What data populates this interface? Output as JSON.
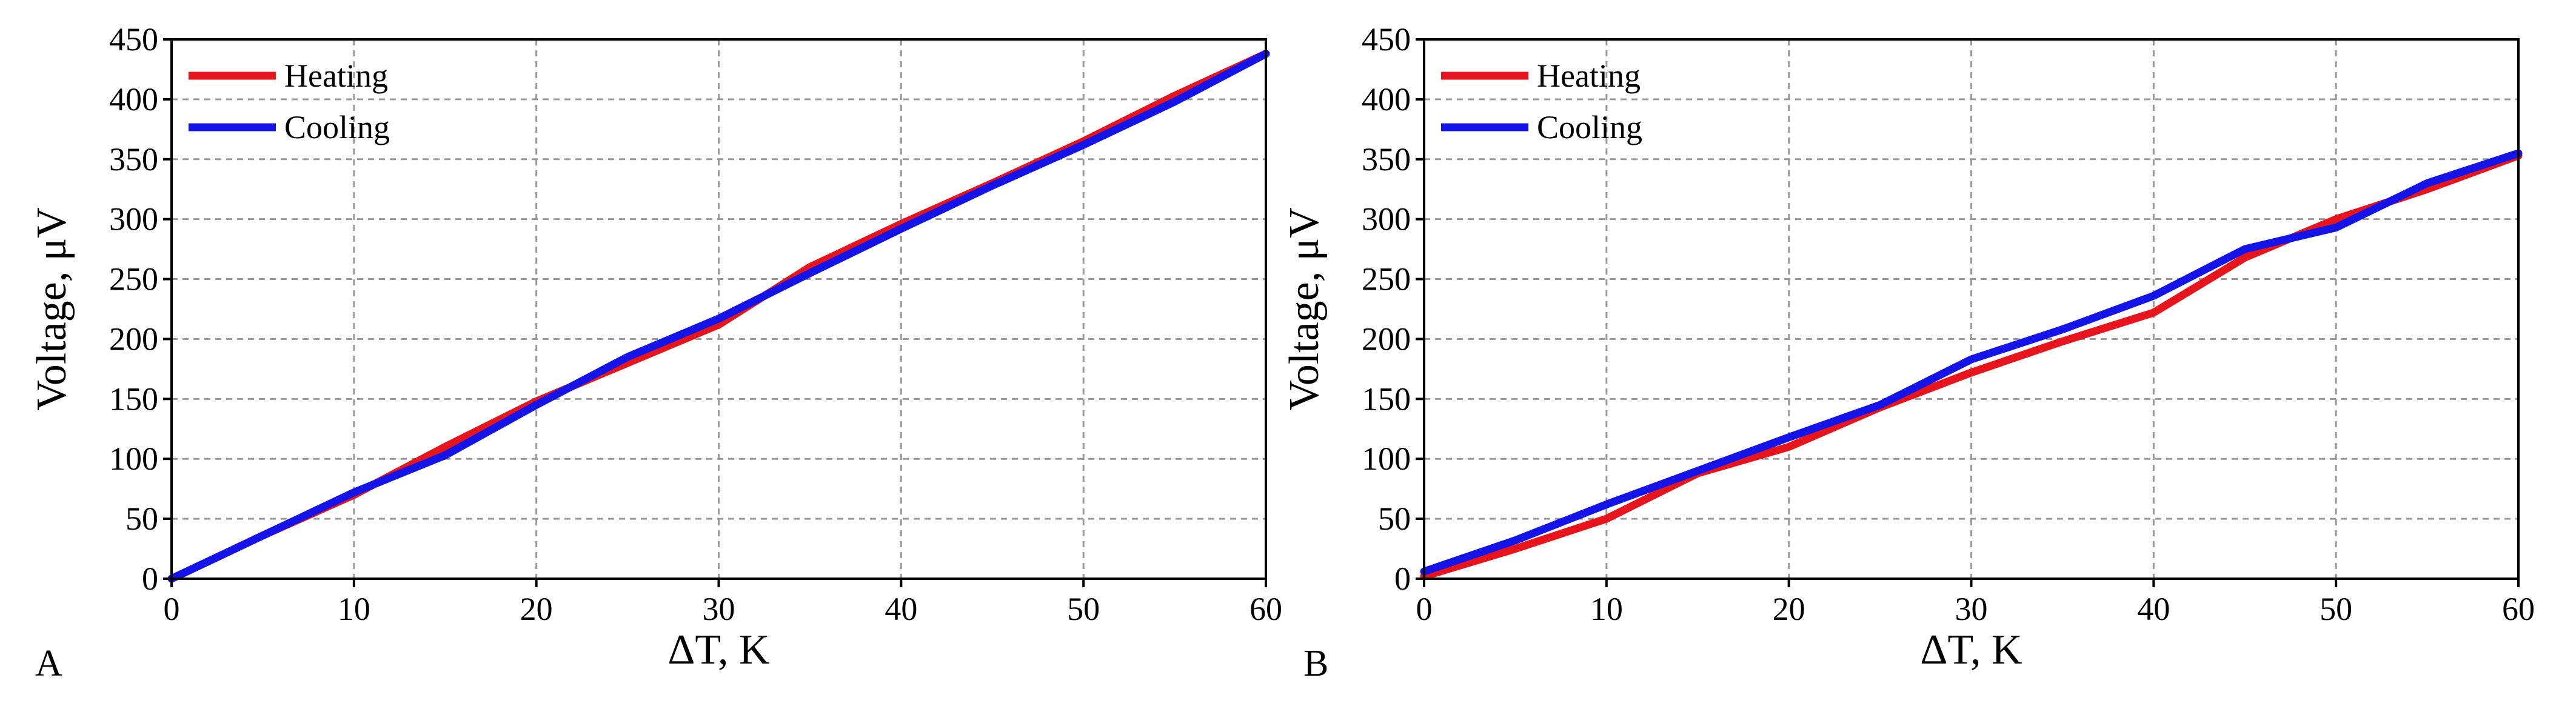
{
  "figure": {
    "panels": [
      {
        "id": "A",
        "label": "A"
      },
      {
        "id": "B",
        "label": "B"
      }
    ]
  },
  "chart_data": [
    {
      "type": "line",
      "panel": "A",
      "title": "",
      "xlabel": "ΔT, K",
      "ylabel": "Voltage, μV",
      "xlim": [
        0,
        60
      ],
      "ylim": [
        0,
        450
      ],
      "xticks": [
        0,
        10,
        20,
        30,
        40,
        50,
        60
      ],
      "yticks": [
        0,
        50,
        100,
        150,
        200,
        250,
        300,
        350,
        400,
        450
      ],
      "grid": true,
      "legend_position": "top-left",
      "series": [
        {
          "name": "Heating",
          "color": "#e8141c",
          "x": [
            0,
            5,
            10,
            15,
            20,
            25,
            30,
            35,
            40,
            45,
            50,
            55,
            60
          ],
          "y": [
            0,
            36,
            70,
            110,
            148,
            180,
            212,
            260,
            296,
            330,
            365,
            403,
            438
          ]
        },
        {
          "name": "Cooling",
          "color": "#1414e8",
          "x": [
            0,
            5,
            10,
            15,
            20,
            25,
            30,
            35,
            40,
            45,
            50,
            55,
            60
          ],
          "y": [
            0,
            36,
            72,
            103,
            145,
            185,
            217,
            255,
            292,
            328,
            362,
            398,
            438
          ]
        }
      ]
    },
    {
      "type": "line",
      "panel": "B",
      "title": "",
      "xlabel": "ΔT, K",
      "ylabel": "Voltage, μV",
      "xlim": [
        0,
        60
      ],
      "ylim": [
        0,
        450
      ],
      "xticks": [
        0,
        10,
        20,
        30,
        40,
        50,
        60
      ],
      "yticks": [
        0,
        50,
        100,
        150,
        200,
        250,
        300,
        350,
        400,
        450
      ],
      "grid": true,
      "legend_position": "top-left",
      "series": [
        {
          "name": "Heating",
          "color": "#e8141c",
          "x": [
            0,
            5,
            10,
            15,
            20,
            25,
            30,
            35,
            40,
            45,
            50,
            55,
            60
          ],
          "y": [
            2,
            25,
            50,
            88,
            110,
            143,
            172,
            198,
            222,
            268,
            300,
            325,
            353
          ]
        },
        {
          "name": "Cooling",
          "color": "#1414e8",
          "x": [
            0,
            5,
            10,
            15,
            20,
            25,
            30,
            35,
            40,
            45,
            50,
            55,
            60
          ],
          "y": [
            6,
            32,
            62,
            90,
            118,
            145,
            183,
            208,
            236,
            275,
            293,
            330,
            355
          ]
        }
      ]
    }
  ]
}
